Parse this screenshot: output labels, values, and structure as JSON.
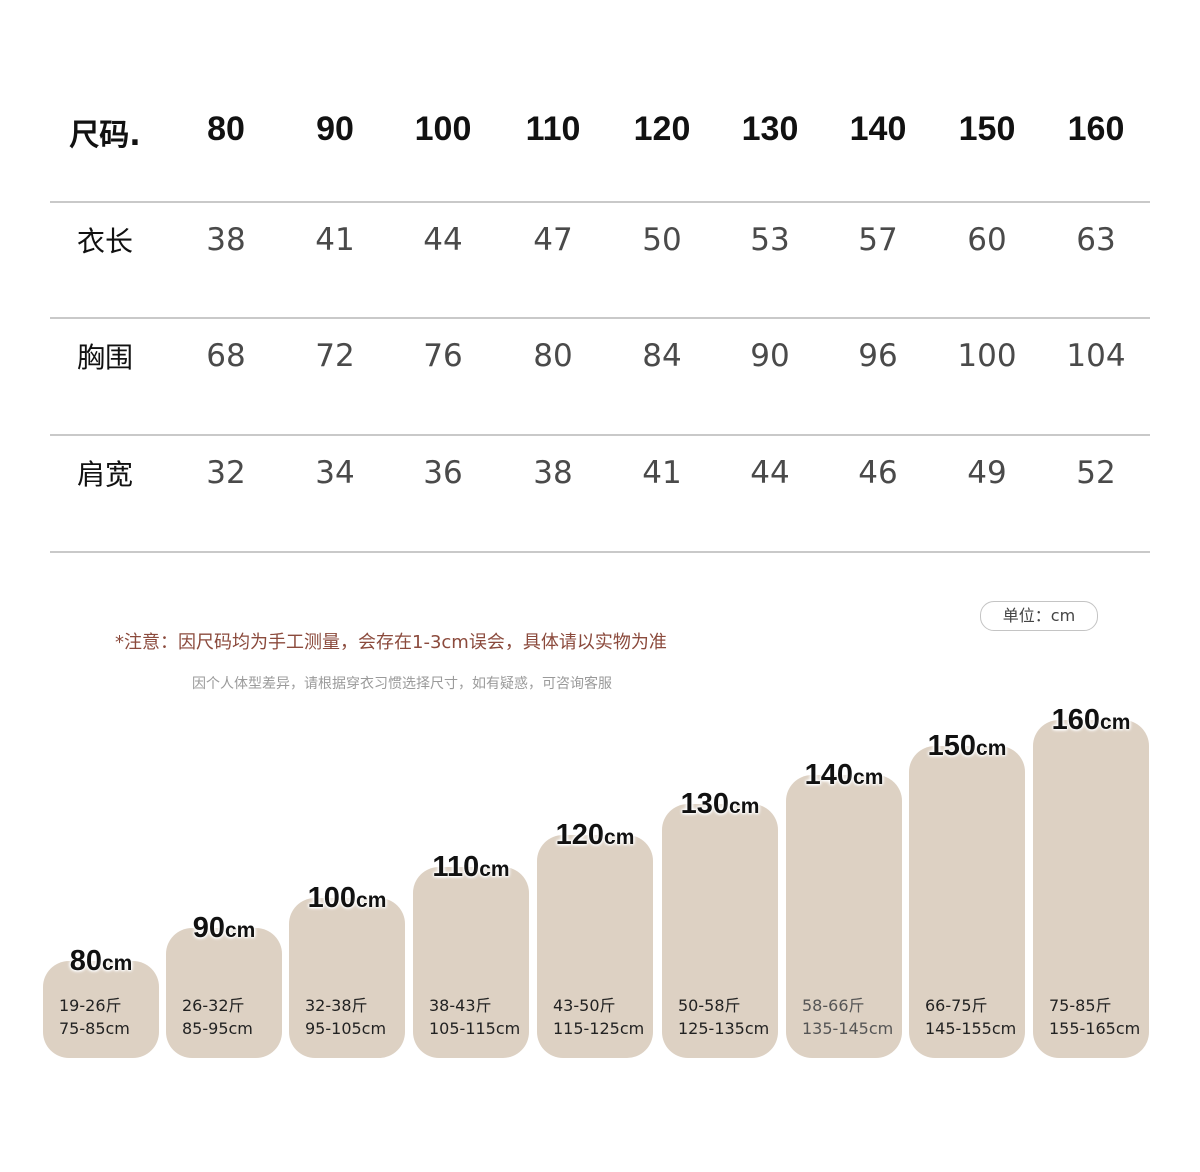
{
  "size_table": {
    "header": {
      "label": "尺码.",
      "sizes": [
        "80",
        "90",
        "100",
        "110",
        "120",
        "130",
        "140",
        "150",
        "160"
      ]
    },
    "rows": [
      {
        "label": "衣长",
        "values": [
          "38",
          "41",
          "44",
          "47",
          "50",
          "53",
          "57",
          "60",
          "63"
        ]
      },
      {
        "label": "胸围",
        "values": [
          "68",
          "72",
          "76",
          "80",
          "84",
          "90",
          "96",
          "100",
          "104"
        ]
      },
      {
        "label": "肩宽",
        "values": [
          "32",
          "34",
          "36",
          "38",
          "41",
          "44",
          "46",
          "49",
          "52"
        ]
      }
    ]
  },
  "notes": {
    "unit": "单位：cm",
    "primary": "*注意：因尺码均为手工测量，会存在1-3cm误会，具体请以实物为准",
    "secondary": "因个人体型差异，请根据穿衣习惯选择尺寸，如有疑惑，可咨询客服"
  },
  "size_cards": [
    {
      "height": "80",
      "unit": "cm",
      "weight": "19-26斤",
      "range": "75-85cm"
    },
    {
      "height": "90",
      "unit": "cm",
      "weight": "26-32斤",
      "range": "85-95cm"
    },
    {
      "height": "100",
      "unit": "cm",
      "weight": "32-38斤",
      "range": "95-105cm"
    },
    {
      "height": "110",
      "unit": "cm",
      "weight": "38-43斤",
      "range": "105-115cm"
    },
    {
      "height": "120",
      "unit": "cm",
      "weight": "43-50斤",
      "range": "115-125cm"
    },
    {
      "height": "130",
      "unit": "cm",
      "weight": "50-58斤",
      "range": "125-135cm"
    },
    {
      "height": "140",
      "unit": "cm",
      "weight": "58-66斤",
      "range": "135-145cm"
    },
    {
      "height": "150",
      "unit": "cm",
      "weight": "66-75斤",
      "range": "145-155cm"
    },
    {
      "height": "160",
      "unit": "cm",
      "weight": "75-85斤",
      "range": "155-165cm"
    }
  ],
  "colors": {
    "card_fill": "#ddd1c3",
    "note_text": "#8b4a3c",
    "rule": "#c9c9c9"
  }
}
